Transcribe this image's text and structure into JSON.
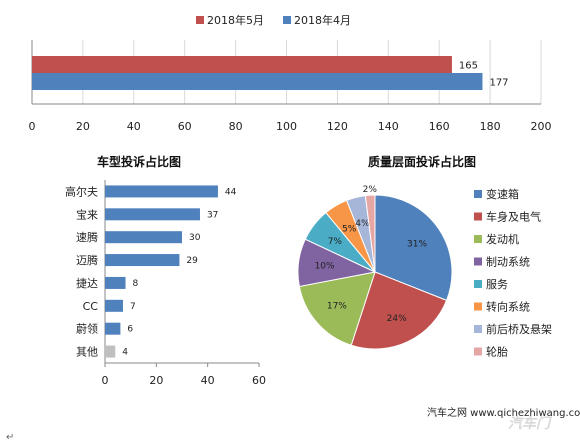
{
  "chart_data": [
    {
      "type": "bar",
      "orientation": "horizontal",
      "title": "",
      "series": [
        {
          "name": "2018年5月",
          "color": "#c0504d",
          "values": [
            165
          ]
        },
        {
          "name": "2018年4月",
          "color": "#4f81bd",
          "values": [
            177
          ]
        }
      ],
      "legend_order": [
        "2018年5月",
        "2018年4月"
      ],
      "legend_position": "top",
      "xlim": [
        0,
        200
      ],
      "xticks": [
        0,
        20,
        40,
        60,
        80,
        100,
        120,
        140,
        160,
        180,
        200
      ],
      "grid": "vertical"
    },
    {
      "type": "bar",
      "orientation": "horizontal",
      "title": "车型投诉占比图",
      "categories": [
        "高尔夫",
        "宝来",
        "速腾",
        "迈腾",
        "捷达",
        "CC",
        "蔚领",
        "其他"
      ],
      "values": [
        44,
        37,
        30,
        29,
        8,
        7,
        6,
        4
      ],
      "colors": [
        "#4f81bd",
        "#4f81bd",
        "#4f81bd",
        "#4f81bd",
        "#4f81bd",
        "#4f81bd",
        "#4f81bd",
        "#bfbfbf"
      ],
      "xlim": [
        0,
        60
      ],
      "xticks": [
        0,
        20,
        40,
        60
      ],
      "grid": "none"
    },
    {
      "type": "pie",
      "title": "质量层面投诉占比图",
      "categories": [
        "变速箱",
        "车身及电气",
        "发动机",
        "制动系统",
        "服务",
        "转向系统",
        "前后桥及悬架",
        "轮胎"
      ],
      "values": [
        31,
        24,
        17,
        10,
        7,
        5,
        4,
        2
      ],
      "labels": [
        "31%",
        "24%",
        "17%",
        "10%",
        "7%",
        "5%",
        "4%",
        "2%"
      ],
      "colors": [
        "#4f81bd",
        "#c0504d",
        "#9bbb59",
        "#8064a2",
        "#4bacc6",
        "#f79646",
        "#a5b6d8",
        "#e6a6a4"
      ],
      "legend_position": "right"
    }
  ],
  "footer": {
    "watermark": "汽车之网 www.qichezhiwang.com",
    "brand": "汽车门",
    "para_mark": "↵"
  }
}
